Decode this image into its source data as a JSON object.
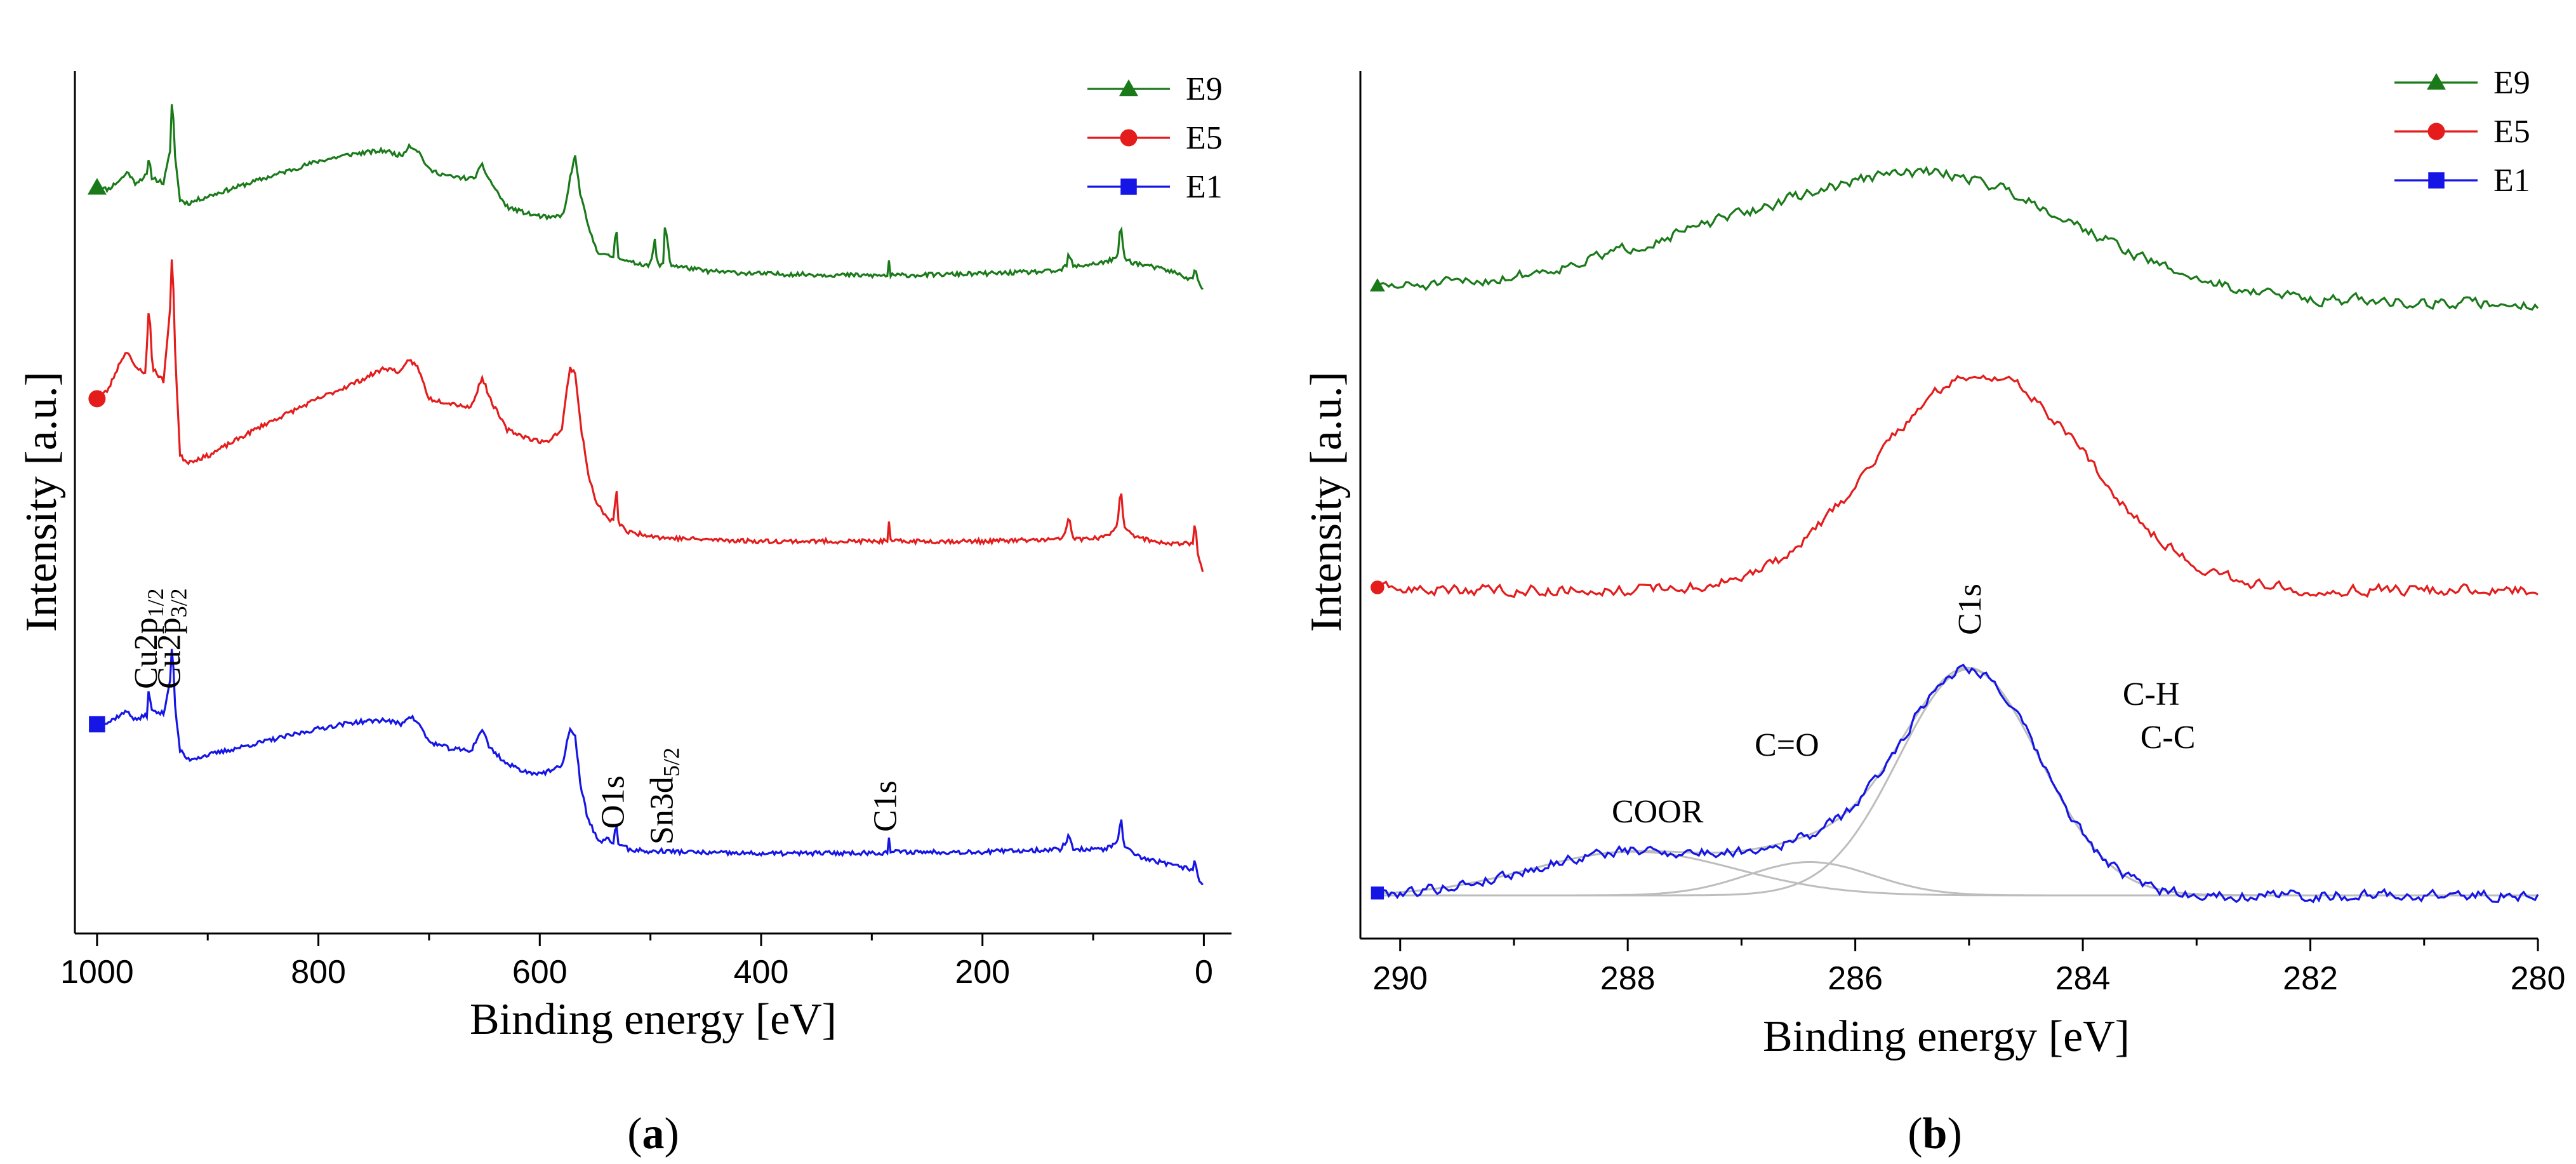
{
  "chart_data": [
    {
      "id": "a",
      "type": "line",
      "panel_label_open": "(",
      "panel_label": "a",
      "panel_label_close": ")",
      "xlabel": "Binding energy [eV]",
      "ylabel": "Intensity [a.u.]",
      "xlim": [
        1020,
        -25
      ],
      "x_reversed": true,
      "xticks": [
        1000,
        800,
        600,
        400,
        200,
        0
      ],
      "ylim": [
        0,
        9.8
      ],
      "y_ticks_shown": false,
      "legend_position": "top-right",
      "series": [
        {
          "name": "E9",
          "color": "#1a7a1a",
          "marker": "triangle",
          "offset": 6.9,
          "seed": 11,
          "profile": [
            [
              1000,
              1.0
            ],
            [
              990,
              0.98
            ],
            [
              978,
              1.1
            ],
            [
              972,
              1.18
            ],
            [
              966,
              1.05
            ],
            [
              955,
              1.14
            ],
            [
              953,
              1.35
            ],
            [
              951,
              1.12
            ],
            [
              940,
              1.05
            ],
            [
              934,
              1.4
            ],
            [
              932,
              2.15
            ],
            [
              930,
              1.4
            ],
            [
              925,
              0.86
            ],
            [
              918,
              0.82
            ],
            [
              900,
              0.9
            ],
            [
              850,
              1.1
            ],
            [
              800,
              1.3
            ],
            [
              770,
              1.38
            ],
            [
              740,
              1.42
            ],
            [
              725,
              1.36
            ],
            [
              718,
              1.48
            ],
            [
              710,
              1.42
            ],
            [
              700,
              1.2
            ],
            [
              680,
              1.12
            ],
            [
              660,
              1.1
            ],
            [
              652,
              1.25
            ],
            [
              646,
              1.1
            ],
            [
              630,
              0.78
            ],
            [
              610,
              0.7
            ],
            [
              590,
              0.65
            ],
            [
              578,
              0.7
            ],
            [
              572,
              1.15
            ],
            [
              568,
              1.35
            ],
            [
              563,
              0.9
            ],
            [
              555,
              0.5
            ],
            [
              548,
              0.28
            ],
            [
              540,
              0.22
            ],
            [
              533,
              0.22
            ],
            [
              531,
              0.6
            ],
            [
              529,
              0.22
            ],
            [
              520,
              0.15
            ],
            [
              500,
              0.12
            ],
            [
              496,
              0.4
            ],
            [
              494,
              0.13
            ],
            [
              488,
              0.12
            ],
            [
              487,
              0.55
            ],
            [
              485,
              0.45
            ],
            [
              482,
              0.12
            ],
            [
              450,
              0.05
            ],
            [
              400,
              0.02
            ],
            [
              300,
              0.0
            ],
            [
              286,
              0.0
            ],
            [
              285,
              0.22
            ],
            [
              283,
              0.0
            ],
            [
              200,
              0.02
            ],
            [
              130,
              0.05
            ],
            [
              124,
              0.12
            ],
            [
              122,
              0.25
            ],
            [
              118,
              0.1
            ],
            [
              90,
              0.15
            ],
            [
              78,
              0.2
            ],
            [
              75,
              0.6
            ],
            [
              72,
              0.2
            ],
            [
              65,
              0.15
            ],
            [
              30,
              0.05
            ],
            [
              10,
              -0.05
            ],
            [
              8,
              0.12
            ],
            [
              6,
              -0.05
            ],
            [
              3,
              -0.12
            ],
            [
              0,
              -0.15
            ]
          ]
        },
        {
          "name": "E5",
          "color": "#e41c1c",
          "marker": "circle",
          "offset": 3.8,
          "seed": 23,
          "profile": [
            [
              1000,
              1.7
            ],
            [
              990,
              1.8
            ],
            [
              978,
              2.15
            ],
            [
              972,
              2.25
            ],
            [
              966,
              2.05
            ],
            [
              956,
              2.0
            ],
            [
              953,
              2.8
            ],
            [
              950,
              2.05
            ],
            [
              940,
              1.9
            ],
            [
              934,
              2.7
            ],
            [
              932,
              3.5
            ],
            [
              930,
              2.4
            ],
            [
              928,
              1.85
            ],
            [
              925,
              1.05
            ],
            [
              918,
              0.98
            ],
            [
              900,
              1.05
            ],
            [
              850,
              1.4
            ],
            [
              800,
              1.7
            ],
            [
              760,
              1.92
            ],
            [
              740,
              2.05
            ],
            [
              725,
              2.0
            ],
            [
              718,
              2.15
            ],
            [
              710,
              2.05
            ],
            [
              700,
              1.7
            ],
            [
              680,
              1.65
            ],
            [
              662,
              1.6
            ],
            [
              652,
              1.95
            ],
            [
              645,
              1.7
            ],
            [
              630,
              1.35
            ],
            [
              610,
              1.25
            ],
            [
              595,
              1.2
            ],
            [
              580,
              1.35
            ],
            [
              573,
              2.05
            ],
            [
              568,
              2.0
            ],
            [
              563,
              1.4
            ],
            [
              557,
              0.9
            ],
            [
              550,
              0.55
            ],
            [
              540,
              0.35
            ],
            [
              533,
              0.3
            ],
            [
              531,
              0.75
            ],
            [
              529,
              0.3
            ],
            [
              520,
              0.18
            ],
            [
              500,
              0.15
            ],
            [
              490,
              0.12
            ],
            [
              450,
              0.1
            ],
            [
              400,
              0.08
            ],
            [
              300,
              0.08
            ],
            [
              286,
              0.08
            ],
            [
              285,
              0.35
            ],
            [
              283,
              0.08
            ],
            [
              200,
              0.08
            ],
            [
              130,
              0.1
            ],
            [
              125,
              0.18
            ],
            [
              122,
              0.38
            ],
            [
              118,
              0.1
            ],
            [
              90,
              0.12
            ],
            [
              78,
              0.25
            ],
            [
              75,
              0.7
            ],
            [
              72,
              0.25
            ],
            [
              60,
              0.12
            ],
            [
              30,
              0.05
            ],
            [
              10,
              0.05
            ],
            [
              8,
              0.35
            ],
            [
              6,
              0.0
            ],
            [
              3,
              -0.2
            ],
            [
              0,
              -0.3
            ]
          ]
        },
        {
          "name": "E1",
          "color": "#1515e6",
          "marker": "square",
          "offset": 0.0,
          "seed": 37,
          "profile": [
            [
              1000,
              1.8
            ],
            [
              990,
              1.82
            ],
            [
              980,
              1.9
            ],
            [
              972,
              1.95
            ],
            [
              966,
              1.85
            ],
            [
              955,
              1.9
            ],
            [
              953,
              2.25
            ],
            [
              951,
              1.95
            ],
            [
              940,
              1.92
            ],
            [
              934,
              2.3
            ],
            [
              932,
              2.8
            ],
            [
              930,
              2.05
            ],
            [
              925,
              1.5
            ],
            [
              918,
              1.4
            ],
            [
              900,
              1.45
            ],
            [
              850,
              1.6
            ],
            [
              800,
              1.75
            ],
            [
              770,
              1.82
            ],
            [
              740,
              1.85
            ],
            [
              725,
              1.8
            ],
            [
              718,
              1.9
            ],
            [
              710,
              1.82
            ],
            [
              700,
              1.6
            ],
            [
              680,
              1.52
            ],
            [
              662,
              1.5
            ],
            [
              652,
              1.75
            ],
            [
              646,
              1.55
            ],
            [
              630,
              1.35
            ],
            [
              610,
              1.25
            ],
            [
              595,
              1.25
            ],
            [
              580,
              1.32
            ],
            [
              573,
              1.75
            ],
            [
              568,
              1.65
            ],
            [
              563,
              1.1
            ],
            [
              557,
              0.75
            ],
            [
              550,
              0.55
            ],
            [
              545,
              0.45
            ],
            [
              538,
              0.5
            ],
            [
              533,
              0.45
            ],
            [
              531,
              0.7
            ],
            [
              529,
              0.45
            ],
            [
              520,
              0.38
            ],
            [
              500,
              0.35
            ],
            [
              490,
              0.36
            ],
            [
              450,
              0.34
            ],
            [
              400,
              0.33
            ],
            [
              300,
              0.34
            ],
            [
              286,
              0.34
            ],
            [
              285,
              0.58
            ],
            [
              283,
              0.35
            ],
            [
              200,
              0.35
            ],
            [
              130,
              0.38
            ],
            [
              125,
              0.45
            ],
            [
              122,
              0.55
            ],
            [
              118,
              0.38
            ],
            [
              90,
              0.38
            ],
            [
              78,
              0.45
            ],
            [
              75,
              0.75
            ],
            [
              72,
              0.4
            ],
            [
              60,
              0.3
            ],
            [
              30,
              0.2
            ],
            [
              10,
              0.15
            ],
            [
              8,
              0.3
            ],
            [
              6,
              0.1
            ],
            [
              3,
              0.0
            ],
            [
              0,
              -0.05
            ]
          ]
        }
      ],
      "annotations": [
        {
          "base": "Cu2p",
          "sub": "1/2",
          "x": 953
        },
        {
          "base": "Cu2p",
          "sub": "3/2",
          "x": 932
        },
        {
          "base": "O1s",
          "sub": "",
          "x": 531
        },
        {
          "base": "Sn3d",
          "sub": "5/2",
          "x": 487
        },
        {
          "base": "C1s",
          "sub": "",
          "x": 285
        }
      ]
    },
    {
      "id": "b",
      "type": "line",
      "panel_label_open": "(",
      "panel_label": "b",
      "panel_label_close": ")",
      "xlabel": "Binding energy [eV]",
      "ylabel": "Intensity [a.u.]",
      "xlim": [
        290.35,
        280.0
      ],
      "x_reversed": true,
      "xticks": [
        290,
        288,
        286,
        284,
        282,
        280
      ],
      "ylim": [
        0,
        10.2
      ],
      "y_ticks_shown": false,
      "legend_position": "top-right",
      "series": [
        {
          "name": "E9",
          "color": "#1a7a1a",
          "marker": "triangle",
          "offset": 7.65,
          "seed": 51,
          "baseline": 0.0,
          "tail_slope": -0.02,
          "peaks": [
            {
              "center": 285.2,
              "height": 1.45,
              "width": 1.2
            },
            {
              "center": 287.3,
              "height": 0.55,
              "width": 1.1
            }
          ]
        },
        {
          "name": "E5",
          "color": "#e41c1c",
          "marker": "circle",
          "offset": 3.85,
          "seed": 63,
          "baseline": 0.0,
          "tail_slope": 0.0,
          "peaks": [
            {
              "center": 284.7,
              "height": 2.35,
              "width": 0.85
            },
            {
              "center": 285.6,
              "height": 0.7,
              "width": 0.7
            }
          ]
        },
        {
          "name": "E1",
          "color": "#1515e6",
          "marker": "square",
          "offset": 0.0,
          "seed": 79,
          "baseline": 0.0,
          "tail_slope": 0.0,
          "fit_sum": true
        }
      ],
      "components": [
        {
          "label": "COOR",
          "center": 287.95,
          "height": 0.55,
          "width": 0.9
        },
        {
          "label": "C=O",
          "center": 286.4,
          "height": 0.42,
          "width": 0.55
        },
        {
          "label": "C1s",
          "center": 285.0,
          "height": 2.85,
          "width": 0.62
        }
      ],
      "component_color": "#bdbdbd",
      "annotations": [
        {
          "text": "C1s",
          "x": 285.0,
          "rotated": true
        },
        {
          "text": "C-H",
          "x": 283.65,
          "rotated": false
        },
        {
          "text": "C-C",
          "x": 283.55,
          "rotated": false
        },
        {
          "text": "C=O",
          "x": 286.55,
          "rotated": false
        },
        {
          "text": "COOR",
          "x": 287.75,
          "rotated": false
        }
      ]
    }
  ]
}
